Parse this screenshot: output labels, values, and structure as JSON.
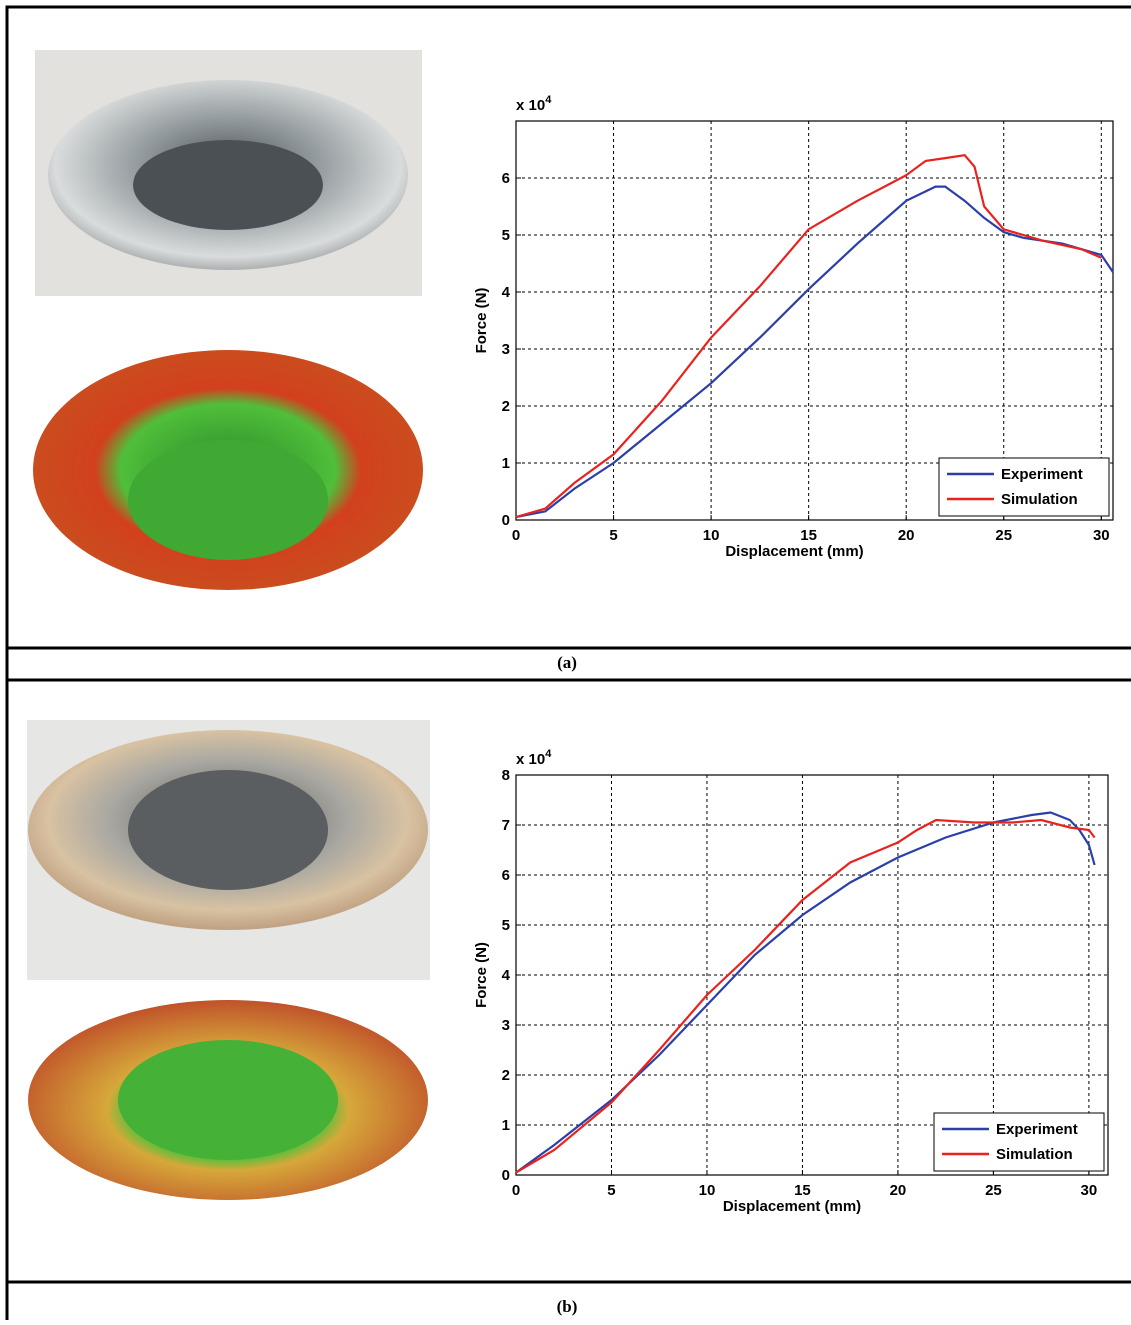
{
  "chart_data": [
    {
      "type": "line",
      "caption": "(a)",
      "x_label": "Displacement (mm)",
      "y_label": "Force (N)",
      "y_multiplier": "x 10",
      "y_multiplier_exp": "4",
      "xlim": [
        0,
        30.6
      ],
      "ylim": [
        0,
        7
      ],
      "xticks": [
        0,
        5,
        10,
        15,
        20,
        25,
        30
      ],
      "yticks": [
        0,
        1,
        2,
        3,
        4,
        5,
        6
      ],
      "grid": true,
      "legend": "lower right",
      "series": [
        {
          "name": "Experiment",
          "color": "#2b3fa8",
          "x": [
            0,
            1.5,
            3,
            5,
            7.5,
            10,
            12.5,
            15,
            17.5,
            20,
            21.5,
            22,
            23,
            24,
            25,
            26,
            28,
            30,
            30.6
          ],
          "values": [
            0.05,
            0.15,
            0.55,
            1.0,
            1.7,
            2.4,
            3.2,
            4.05,
            4.85,
            5.6,
            5.85,
            5.85,
            5.6,
            5.3,
            5.05,
            4.95,
            4.85,
            4.65,
            4.35
          ]
        },
        {
          "name": "Simulation",
          "color": "#e8231f",
          "x": [
            0,
            1.5,
            3,
            5,
            7.5,
            10,
            12.5,
            15,
            17.5,
            20,
            21,
            22,
            23,
            23.5,
            24,
            25,
            27,
            29,
            30
          ],
          "values": [
            0.05,
            0.2,
            0.65,
            1.15,
            2.1,
            3.2,
            4.1,
            5.1,
            5.6,
            6.05,
            6.3,
            6.35,
            6.4,
            6.2,
            5.5,
            5.1,
            4.9,
            4.75,
            4.6
          ]
        }
      ]
    },
    {
      "type": "line",
      "caption": "(b)",
      "x_label": "Displacement (mm)",
      "y_label": "Force (N)",
      "y_multiplier": "x 10",
      "y_multiplier_exp": "4",
      "xlim": [
        0,
        31
      ],
      "ylim": [
        0,
        8
      ],
      "xticks": [
        0,
        5,
        10,
        15,
        20,
        25,
        30
      ],
      "yticks": [
        0,
        1,
        2,
        3,
        4,
        5,
        6,
        7,
        8
      ],
      "grid": true,
      "legend": "lower right",
      "series": [
        {
          "name": "Experiment",
          "color": "#2b3fa8",
          "x": [
            0,
            2,
            5,
            7.5,
            10,
            12.5,
            15,
            17.5,
            20,
            22.5,
            25,
            27,
            28,
            29,
            29.5,
            30,
            30.3
          ],
          "values": [
            0.05,
            0.6,
            1.5,
            2.4,
            3.4,
            4.4,
            5.2,
            5.85,
            6.35,
            6.75,
            7.05,
            7.2,
            7.25,
            7.1,
            6.9,
            6.6,
            6.2
          ]
        },
        {
          "name": "Simulation",
          "color": "#e8231f",
          "x": [
            0,
            2,
            5,
            7.5,
            10,
            12.5,
            15,
            17.5,
            20,
            21,
            22,
            24,
            26,
            27.5,
            29,
            30,
            30.3
          ],
          "values": [
            0.05,
            0.5,
            1.45,
            2.5,
            3.6,
            4.5,
            5.5,
            6.25,
            6.65,
            6.9,
            7.1,
            7.05,
            7.05,
            7.1,
            6.95,
            6.9,
            6.75
          ]
        }
      ]
    }
  ]
}
